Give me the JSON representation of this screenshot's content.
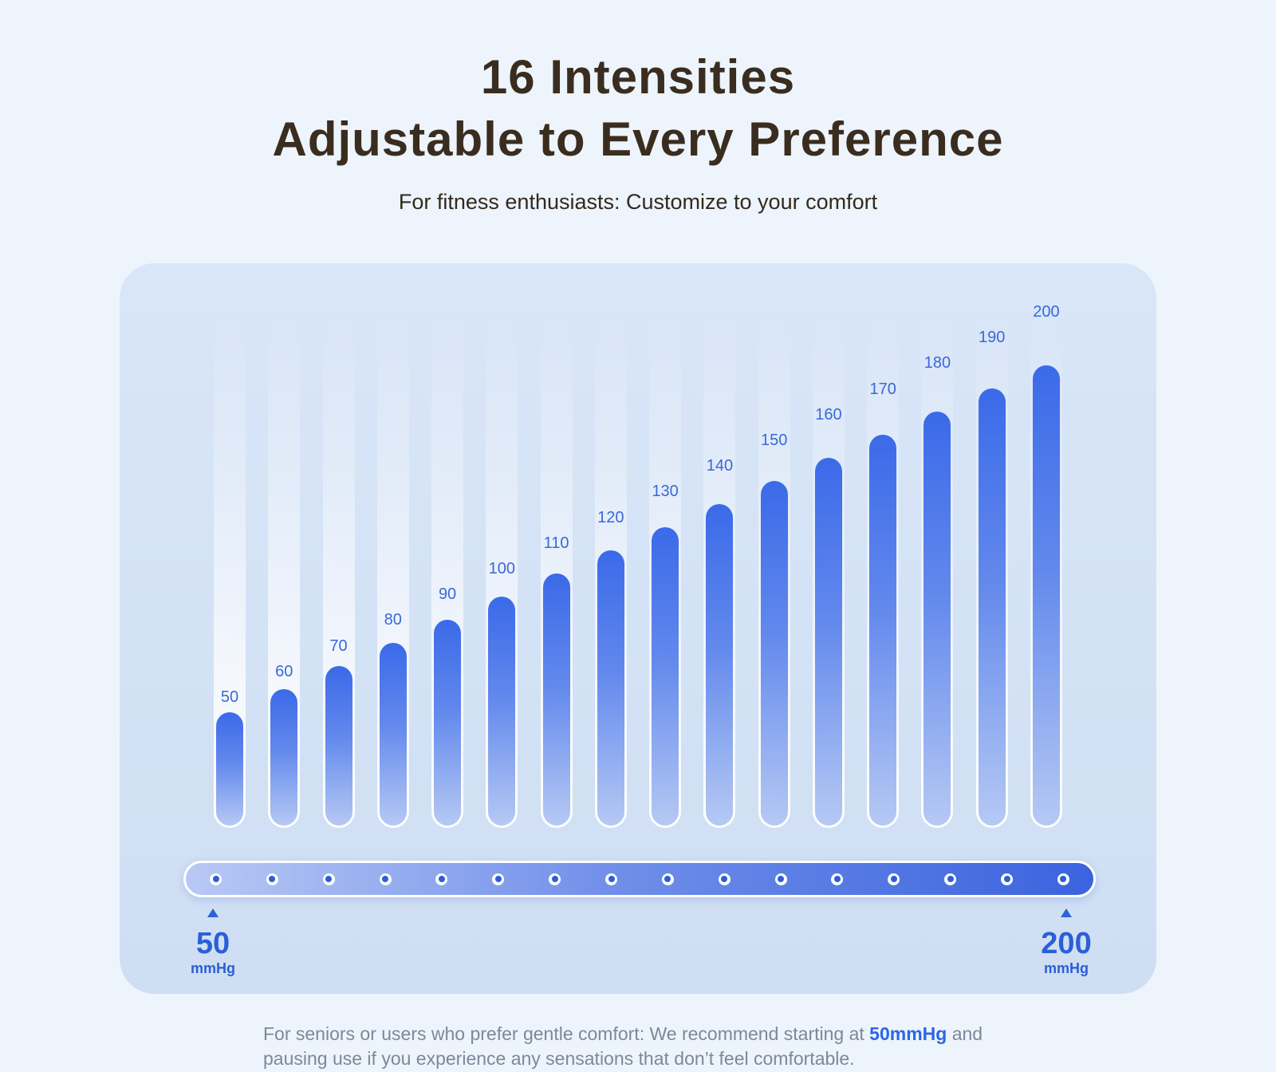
{
  "header": {
    "title_line1": "16 Intensities",
    "title_line2": "Adjustable to Every Preference",
    "subtitle": "For fitness enthusiasts: Customize to your comfort"
  },
  "chart_data": {
    "type": "bar",
    "title": "16 Intensities",
    "categories": [
      "50",
      "60",
      "70",
      "80",
      "90",
      "100",
      "110",
      "120",
      "130",
      "140",
      "150",
      "160",
      "170",
      "180",
      "190",
      "200"
    ],
    "values": [
      50,
      60,
      70,
      80,
      90,
      100,
      110,
      120,
      130,
      140,
      150,
      160,
      170,
      180,
      190,
      200
    ],
    "unit": "mmHg",
    "xlabel": "",
    "ylabel": "",
    "ylim": [
      0,
      200
    ],
    "bar_count": 16,
    "grid": false,
    "legend": false,
    "value_labels_shown": true
  },
  "slider": {
    "dot_count": 16,
    "min_label": {
      "value": "50",
      "unit": "mmHg"
    },
    "max_label": {
      "value": "200",
      "unit": "mmHg"
    },
    "icons": {
      "min_marker": "triangle-up-icon",
      "max_marker": "triangle-up-icon"
    }
  },
  "footer": {
    "line1_before": "For seniors or users who prefer gentle comfort: We recommend starting at ",
    "line1_highlight": "50mmHg",
    "line1_after": " and",
    "line2": "pausing use if you experience any sensations that don’t feel comfortable."
  },
  "colors": {
    "page_bg": "#edf4fb",
    "card_bg": "#d3e1f5",
    "bar_gradient_top": "#3b6ae9",
    "bar_gradient_bottom": "#b6c9f4",
    "track_white": "#f3f8fd",
    "accent_blue": "#2d62da",
    "bar_label_blue": "#3a68d8",
    "title_brown": "#3a2d1f",
    "footnote_gray": "#7e8898",
    "highlight_blue": "#2d65e8"
  }
}
